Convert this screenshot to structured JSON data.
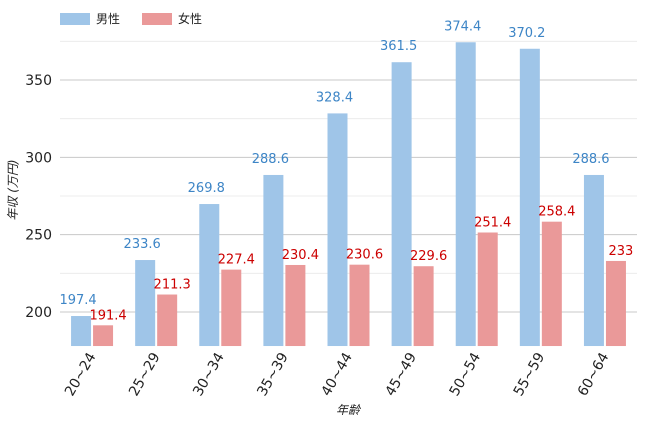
{
  "chart_data": {
    "type": "bar",
    "categories": [
      "20~24",
      "25~29",
      "30~34",
      "35~39",
      "40~44",
      "45~49",
      "50~54",
      "55~59",
      "60~64"
    ],
    "series": [
      {
        "name": "男性",
        "values": [
          197.4,
          233.6,
          269.8,
          288.6,
          328.4,
          361.5,
          374.4,
          370.2,
          288.6
        ],
        "labels": [
          "197.4",
          "233.6",
          "269.8",
          "288.6",
          "328.4",
          "361.5",
          "374.4",
          "370.2",
          "288.6"
        ]
      },
      {
        "name": "女性",
        "values": [
          191.4,
          211.3,
          227.4,
          230.4,
          230.6,
          229.6,
          251.4,
          258.4,
          233
        ],
        "labels": [
          "191.4",
          "211.3",
          "227.4",
          "230.4",
          "230.6",
          "229.6",
          "251.4",
          "258.4",
          "233"
        ]
      }
    ],
    "xlabel": "年齢",
    "ylabel": "年収 (万円)",
    "ylim": [
      178,
      378
    ],
    "yticks": [
      "200",
      "250",
      "300",
      "350"
    ],
    "grid": true,
    "legend": "top-left"
  },
  "colors": {
    "male_bar": "#9fc5e8",
    "female_bar": "#ea9999",
    "male_label": "#3d85c6",
    "female_label": "#cc0000",
    "grid_major": "#c8c8c8",
    "grid_minor": "#ececec"
  }
}
